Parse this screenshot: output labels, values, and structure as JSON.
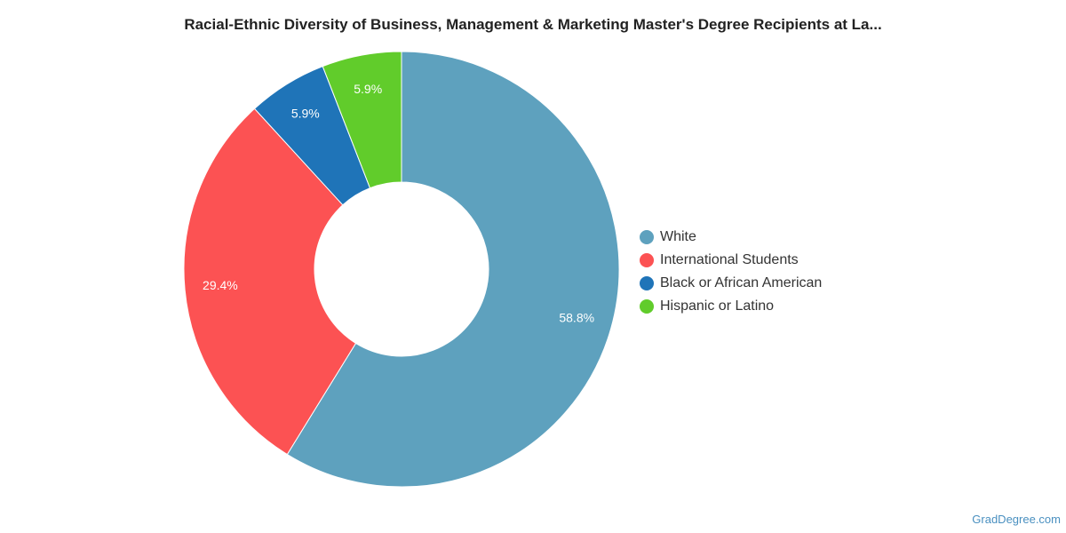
{
  "chart_data": {
    "type": "pie",
    "title": "Racial-Ethnic Diversity of Business, Management & Marketing Master's Degree Recipients at La...",
    "categories": [
      "White",
      "International Students",
      "Black or African American",
      "Hispanic or Latino"
    ],
    "values": [
      58.8,
      29.4,
      5.9,
      5.9
    ],
    "value_labels": [
      "58.8%",
      "29.4%",
      "5.9%",
      "5.9%"
    ],
    "colors": [
      "#5ea1be",
      "#fc5253",
      "#1f74b8",
      "#61cc2b"
    ],
    "donut": true,
    "legend_placement": "right"
  },
  "watermark": "GradDegree.com"
}
